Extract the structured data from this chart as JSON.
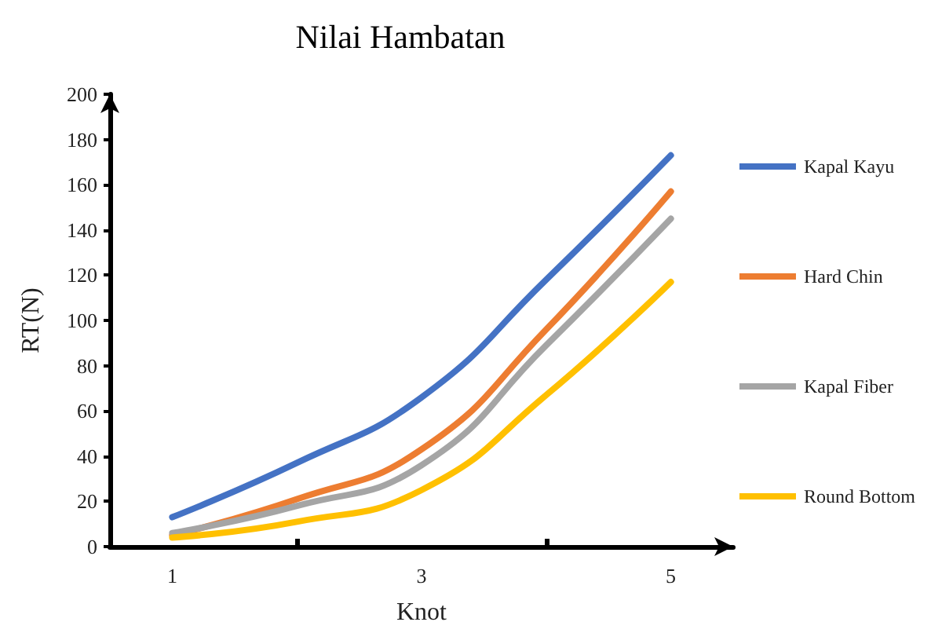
{
  "chart_data": {
    "type": "line",
    "title": "Nilai Hambatan",
    "xlabel": "Knot",
    "ylabel": "RT(N)",
    "categories": [
      "1",
      null,
      "3",
      null,
      "5"
    ],
    "series": [
      {
        "name": "Kapal Kayu",
        "color": "#4472c4",
        "values": [
          13,
          37,
          66,
          118,
          173
        ]
      },
      {
        "name": "Hard Chin",
        "color": "#ed7d31",
        "values": [
          5,
          21,
          43,
          96,
          157
        ]
      },
      {
        "name": "Kapal Fiber",
        "color": "#a5a5a5",
        "values": [
          6,
          18,
          36,
          89,
          145
        ]
      },
      {
        "name": "Round Bottom",
        "color": "#ffc000",
        "values": [
          4,
          11,
          25,
          67,
          117
        ]
      }
    ],
    "ylim": [
      0,
      200
    ],
    "yticks": [
      0,
      20,
      40,
      60,
      80,
      100,
      120,
      140,
      160,
      180,
      200
    ],
    "grid": false,
    "legend": "right",
    "marker": "none",
    "line_style": "solid"
  }
}
